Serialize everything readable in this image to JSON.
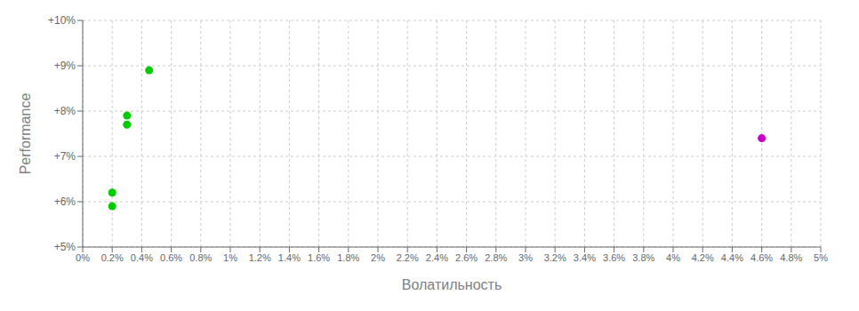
{
  "chart_data": {
    "type": "scatter",
    "xlabel": "Волатильность",
    "ylabel": "Performance",
    "series": [
      {
        "color": "#00cc00",
        "x": [
          0.0045,
          0.003,
          0.003,
          0.002,
          0.002
        ],
        "values": [
          0.089,
          0.079,
          0.077,
          0.062,
          0.059
        ]
      },
      {
        "color": "#cc00cc",
        "x": [
          0.046
        ],
        "values": [
          0.074
        ]
      }
    ],
    "xlim": [
      0.0,
      0.05
    ],
    "ylim": [
      0.05,
      0.1
    ],
    "xticks": [
      {
        "value": 0.0,
        "label": "0%"
      },
      {
        "value": 0.002,
        "label": "0.2%"
      },
      {
        "value": 0.004,
        "label": "0.4%"
      },
      {
        "value": 0.006,
        "label": "0.6%"
      },
      {
        "value": 0.008,
        "label": "0.8%"
      },
      {
        "value": 0.01,
        "label": "1%"
      },
      {
        "value": 0.012,
        "label": "1.2%"
      },
      {
        "value": 0.014,
        "label": "1.4%"
      },
      {
        "value": 0.016,
        "label": "1.6%"
      },
      {
        "value": 0.018,
        "label": "1.8%"
      },
      {
        "value": 0.02,
        "label": "2%"
      },
      {
        "value": 0.022,
        "label": "2.2%"
      },
      {
        "value": 0.024,
        "label": "2.4%"
      },
      {
        "value": 0.026,
        "label": "2.6%"
      },
      {
        "value": 0.028,
        "label": "2.8%"
      },
      {
        "value": 0.03,
        "label": "3%"
      },
      {
        "value": 0.032,
        "label": "3.2%"
      },
      {
        "value": 0.034,
        "label": "3.4%"
      },
      {
        "value": 0.036,
        "label": "3.6%"
      },
      {
        "value": 0.038,
        "label": "3.8%"
      },
      {
        "value": 0.04,
        "label": "4%"
      },
      {
        "value": 0.042,
        "label": "4.2%"
      },
      {
        "value": 0.044,
        "label": "4.4%"
      },
      {
        "value": 0.046,
        "label": "4.6%"
      },
      {
        "value": 0.048,
        "label": "4.8%"
      },
      {
        "value": 0.05,
        "label": "5%"
      }
    ],
    "yticks": [
      {
        "value": 0.05,
        "label": "+5%"
      },
      {
        "value": 0.06,
        "label": "+6%"
      },
      {
        "value": 0.07,
        "label": "+7%"
      },
      {
        "value": 0.08,
        "label": "+8%"
      },
      {
        "value": 0.09,
        "label": "+9%"
      },
      {
        "value": 0.1,
        "label": "+10%"
      }
    ],
    "grid": true
  }
}
